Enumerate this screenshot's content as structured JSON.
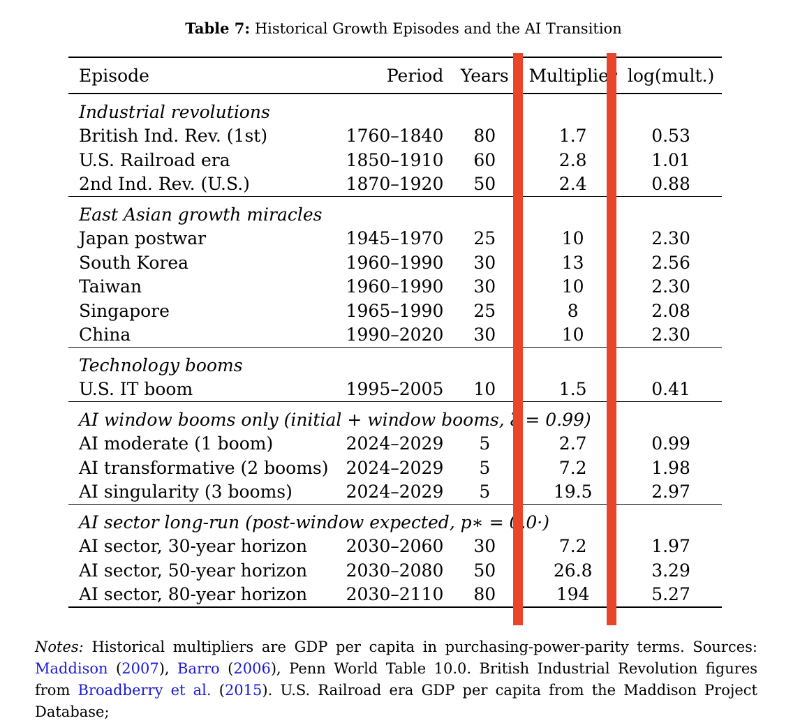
{
  "caption": {
    "label": "Table 7:",
    "title": "Historical Growth Episodes and the AI Transition"
  },
  "columns": [
    "Episode",
    "Period",
    "Years",
    "Multiplier",
    "log(mult.)"
  ],
  "groups": [
    {
      "title": "Industrial revolutions",
      "rows": [
        [
          "British Ind. Rev. (1st)",
          "1760–1840",
          "80",
          "1.7",
          "0.53"
        ],
        [
          "U.S. Railroad era",
          "1850–1910",
          "60",
          "2.8",
          "1.01"
        ],
        [
          "2nd Ind. Rev. (U.S.)",
          "1870–1920",
          "50",
          "2.4",
          "0.88"
        ]
      ]
    },
    {
      "title": "East Asian growth miracles",
      "rows": [
        [
          "Japan postwar",
          "1945–1970",
          "25",
          "10",
          "2.30"
        ],
        [
          "South Korea",
          "1960–1990",
          "30",
          "13",
          "2.56"
        ],
        [
          "Taiwan",
          "1960–1990",
          "30",
          "10",
          "2.30"
        ],
        [
          "Singapore",
          "1965–1990",
          "25",
          "8",
          "2.08"
        ],
        [
          "China",
          "1990–2020",
          "30",
          "10",
          "2.30"
        ]
      ]
    },
    {
      "title": "Technology booms",
      "rows": [
        [
          "U.S. IT boom",
          "1995–2005",
          "10",
          "1.5",
          "0.41"
        ]
      ]
    },
    {
      "title": "AI window booms only (initial + window booms, ξ = 0.99)",
      "rows": [
        [
          "AI moderate (1 boom)",
          "2024–2029",
          "5",
          "2.7",
          "0.99"
        ],
        [
          "AI transformative (2 booms)",
          "2024–2029",
          "5",
          "7.2",
          "1.98"
        ],
        [
          "AI singularity (3 booms)",
          "2024–2029",
          "5",
          "19.5",
          "2.97"
        ]
      ]
    },
    {
      "title": "AI sector long-run (post-window expected, p∗ = 0.0·)",
      "rows": [
        [
          "AI sector, 30-year horizon",
          "2030–2060",
          "30",
          "7.2",
          "1.97"
        ],
        [
          "AI sector, 50-year horizon",
          "2030–2080",
          "50",
          "26.8",
          "3.29"
        ],
        [
          "AI sector, 80-year horizon",
          "2030–2110",
          "80",
          "194",
          "5.27"
        ]
      ]
    }
  ],
  "notes": {
    "label": "Notes:",
    "text1": " Historical multipliers are GDP per capita in purchasing-power-parity terms. Sources: ",
    "cite1": "Maddison",
    "cite1_year": "2007",
    "cite2": "Barro",
    "cite2_year": "2006",
    "text2": ", Penn World Table 10.0.  British Industrial Revolution figures from ",
    "cite3": "Broadberry et al.",
    "cite3_year": "2015",
    "text3": ". U.S. Railroad era GDP per capita from the Maddison Project Database;"
  },
  "accent_color": "#e8452b",
  "link_color": "#1a1ad6"
}
